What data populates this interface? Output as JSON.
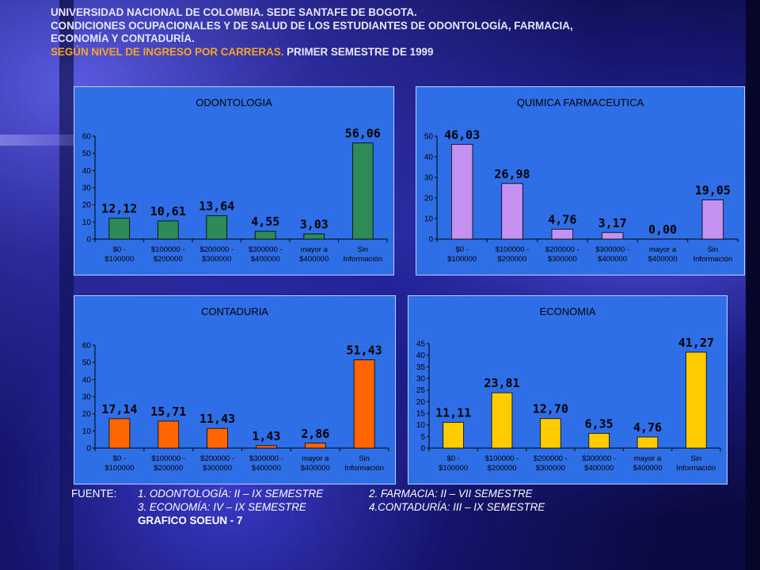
{
  "header": {
    "line1": "UNIVERSIDAD NACIONAL DE COLOMBIA. SEDE SANTAFE DE BOGOTA.",
    "line2": "CONDICIONES OCUPACIONALES Y DE SALUD DE LOS ESTUDIANTES DE ODONTOLOGÍA, FARMACIA,",
    "line3": "ECONOMÍA Y CONTADURÍA.",
    "line4_orange": "SEGÚN NIVEL DE INGRESO POR CARRERAS.",
    "line4_rest": " PRIMER SEMESTRE DE 1999"
  },
  "footer": {
    "label": "FUENTE:",
    "item1": "1. ODONTOLOGÍA: II  – IX SEMESTRE",
    "item2": "2. FARMACIA: II  – VII SEMESTRE",
    "item3": "3. ECONOMÍA: IV – IX SEMESTRE",
    "item4": "4.CONTADURÍA: III – IX SEMESTRE",
    "graph": "GRAFICO SOEUN - 7"
  },
  "colors": {
    "panel_bg": "#2e6ee6",
    "odontologia": "#2e8b57",
    "quimica": "#c591f0",
    "contaduria": "#ff6600",
    "economia": "#ffcc00",
    "accent_orange": "#f5a623"
  },
  "chart_data": [
    {
      "type": "bar",
      "title": "ODONTOLOGIA",
      "categories": [
        [
          "$0 -",
          "$100000"
        ],
        [
          "$100000 -",
          "$200000"
        ],
        [
          "$200000 -",
          "$300000"
        ],
        [
          "$300000 -",
          "$400000"
        ],
        [
          "mayor a",
          "$400000"
        ],
        [
          "Sin",
          "Información"
        ]
      ],
      "values": [
        12.12,
        10.61,
        13.64,
        4.55,
        3.03,
        56.06
      ],
      "labels": [
        "12,12",
        "10,61",
        "13,64",
        "4,55",
        "3,03",
        "56,06"
      ],
      "ylim": [
        0,
        60
      ],
      "yticks": [
        0,
        10,
        20,
        30,
        40,
        50,
        60
      ],
      "color": "#2e8b57"
    },
    {
      "type": "bar",
      "title": "QUIMICA FARMACEUTICA",
      "categories": [
        [
          "$0 -",
          "$100000"
        ],
        [
          "$100000 -",
          "$200000"
        ],
        [
          "$200000 -",
          "$300000"
        ],
        [
          "$300000 -",
          "$400000"
        ],
        [
          "mayor a",
          "$400000"
        ],
        [
          "Sin",
          "Información"
        ]
      ],
      "values": [
        46.03,
        26.98,
        4.76,
        3.17,
        0.0,
        19.05
      ],
      "labels": [
        "46,03",
        "26,98",
        "4,76",
        "3,17",
        "0,00",
        "19,05"
      ],
      "ylim": [
        0,
        50
      ],
      "yticks": [
        0,
        10,
        20,
        30,
        40,
        50
      ],
      "color": "#c591f0"
    },
    {
      "type": "bar",
      "title": "CONTADURIA",
      "categories": [
        [
          "$0 -",
          "$100000"
        ],
        [
          "$100000 -",
          "$200000"
        ],
        [
          "$200000 -",
          "$300000"
        ],
        [
          "$300000 -",
          "$400000"
        ],
        [
          "mayor a",
          "$400000"
        ],
        [
          "Sin",
          "Información"
        ]
      ],
      "values": [
        17.14,
        15.71,
        11.43,
        1.43,
        2.86,
        51.43
      ],
      "labels": [
        "17,14",
        "15,71",
        "11,43",
        "1,43",
        "2,86",
        "51,43"
      ],
      "ylim": [
        0,
        60
      ],
      "yticks": [
        0,
        10,
        20,
        30,
        40,
        50,
        60
      ],
      "color": "#ff6600"
    },
    {
      "type": "bar",
      "title": "ECONOMIA",
      "categories": [
        [
          "$0 -",
          "$100000"
        ],
        [
          "$100000 -",
          "$200000"
        ],
        [
          "$200000 -",
          "$300000"
        ],
        [
          "$300000 -",
          "$400000"
        ],
        [
          "mayor a",
          "$400000"
        ],
        [
          "Sin",
          "Información"
        ]
      ],
      "values": [
        11.11,
        23.81,
        12.7,
        6.35,
        4.76,
        41.27
      ],
      "labels": [
        "11,11",
        "23,81",
        "12,70",
        "6,35",
        "4,76",
        "41,27"
      ],
      "ylim": [
        0,
        45
      ],
      "yticks": [
        0,
        5,
        10,
        15,
        20,
        25,
        30,
        35,
        40,
        45
      ],
      "color": "#ffcc00"
    }
  ]
}
